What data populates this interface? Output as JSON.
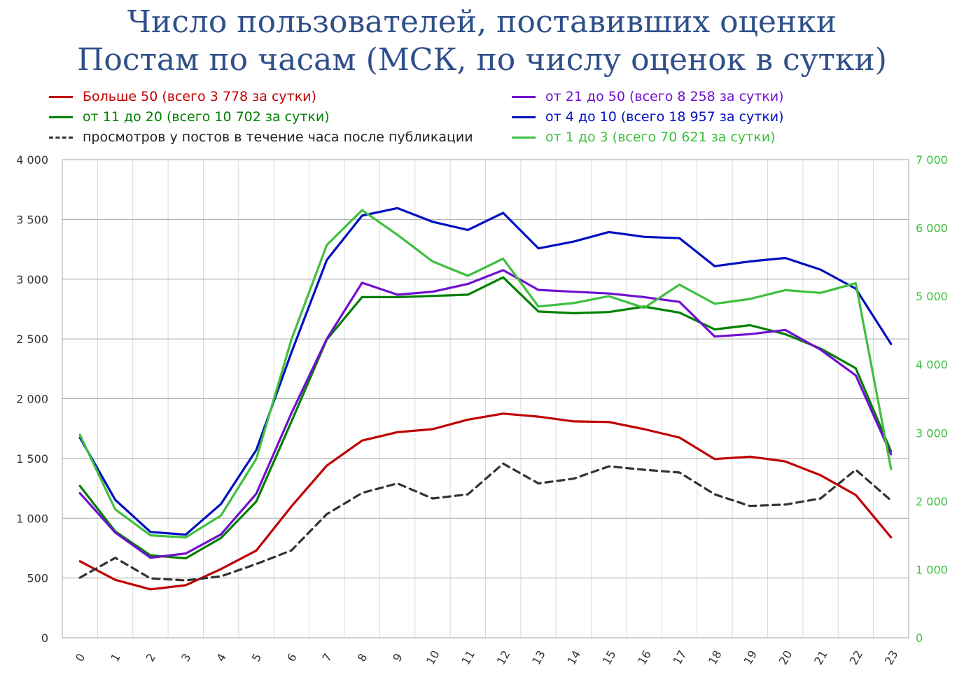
{
  "title_line1": "Число пользователей, поставивших оценки",
  "title_line2": "Постам по часам (МСК, по числу оценок в сутки)",
  "chart_data": {
    "type": "line",
    "categories": [
      "0",
      "1",
      "2",
      "3",
      "4",
      "5",
      "6",
      "7",
      "8",
      "9",
      "10",
      "11",
      "12",
      "13",
      "14",
      "15",
      "16",
      "17",
      "18",
      "19",
      "20",
      "21",
      "22",
      "23"
    ],
    "left_axis": {
      "ylim": [
        0,
        4000
      ],
      "ticks": [
        0,
        500,
        1000,
        1500,
        2000,
        2500,
        3000,
        3500,
        4000
      ],
      "tick_labels": [
        "0",
        "500",
        "1 000",
        "1 500",
        "2 000",
        "2 500",
        "3 000",
        "3 500",
        "4 000"
      ]
    },
    "right_axis": {
      "ylim": [
        0,
        7000
      ],
      "ticks": [
        0,
        1000,
        2000,
        3000,
        4000,
        5000,
        6000,
        7000
      ],
      "tick_labels": [
        "0",
        "1 000",
        "2 000",
        "3 000",
        "4 000",
        "5 000",
        "6 000",
        "7 000"
      ],
      "color": "#3fbf3f"
    },
    "series": [
      {
        "name": "Больше 50 (всего 3 778 за сутки)",
        "color": "#c00000",
        "axis": "left",
        "dashed": false,
        "values": [
          640,
          485,
          405,
          440,
          575,
          730,
          1100,
          1440,
          1650,
          1720,
          1745,
          1825,
          1875,
          1850,
          1810,
          1805,
          1745,
          1675,
          1495,
          1515,
          1475,
          1360,
          1195,
          840
        ]
      },
      {
        "name": "от 11 до 20 (всего 10 702 за сутки)",
        "color": "#008000",
        "axis": "left",
        "dashed": false,
        "values": [
          1270,
          890,
          690,
          665,
          835,
          1140,
          1810,
          2495,
          2850,
          2850,
          2860,
          2870,
          3015,
          2730,
          2715,
          2725,
          2770,
          2720,
          2580,
          2615,
          2540,
          2420,
          2255,
          1560
        ]
      },
      {
        "name": "просмотров у постов в течение часа после публикации",
        "color": "#333333",
        "axis": "right",
        "dashed": true,
        "values": [
          880,
          1170,
          870,
          840,
          900,
          1080,
          1280,
          1810,
          2120,
          2260,
          2040,
          2100,
          2550,
          2260,
          2330,
          2510,
          2460,
          2420,
          2100,
          1930,
          1950,
          2040,
          2460,
          2010
        ]
      },
      {
        "name": "от 21 до 50 (всего 8 258 за сутки)",
        "color": "#7010d0",
        "axis": "left",
        "dashed": false,
        "values": [
          1210,
          880,
          670,
          705,
          865,
          1205,
          1880,
          2500,
          2970,
          2870,
          2895,
          2960,
          3075,
          2910,
          2895,
          2880,
          2850,
          2810,
          2520,
          2540,
          2575,
          2410,
          2195,
          1535
        ]
      },
      {
        "name": "от 4 до 10 (всего 18 957 за сутки)",
        "color": "#0010c0",
        "axis": "right",
        "dashed": false,
        "values": [
          2930,
          2020,
          1550,
          1510,
          1960,
          2750,
          4180,
          5530,
          6180,
          6290,
          6090,
          5970,
          6220,
          5700,
          5800,
          5940,
          5870,
          5850,
          5440,
          5510,
          5560,
          5390,
          5110,
          4300
        ]
      },
      {
        "name": "от 1 до 3 (всего 70 621 за сутки)",
        "color": "#3fbf3f",
        "axis": "right",
        "dashed": false,
        "values": [
          2970,
          1880,
          1500,
          1470,
          1790,
          2620,
          4370,
          5750,
          6260,
          5900,
          5510,
          5300,
          5550,
          4850,
          4900,
          5000,
          4830,
          5170,
          4890,
          4960,
          5090,
          5050,
          5190,
          2470
        ]
      }
    ],
    "legend": [
      {
        "label": "Больше 50 (всего 3 778 за сутки)",
        "color": "#c00000",
        "dashed": false
      },
      {
        "label": "от 21 до 50 (всего 8 258 за сутки)",
        "color": "#7010d0",
        "dashed": false
      },
      {
        "label": "от 11 до 20 (всего 10 702 за сутки)",
        "color": "#008000",
        "dashed": false
      },
      {
        "label": "от 4 до 10 (всего 18 957 за сутки)",
        "color": "#0010c0",
        "dashed": false
      },
      {
        "label": "просмотров у постов в течение часа после публикации",
        "color": "#333333",
        "dashed": true
      },
      {
        "label": "от 1 до 3 (всего 70 621 за сутки)",
        "color": "#3fbf3f",
        "dashed": false
      }
    ],
    "grid": true
  }
}
